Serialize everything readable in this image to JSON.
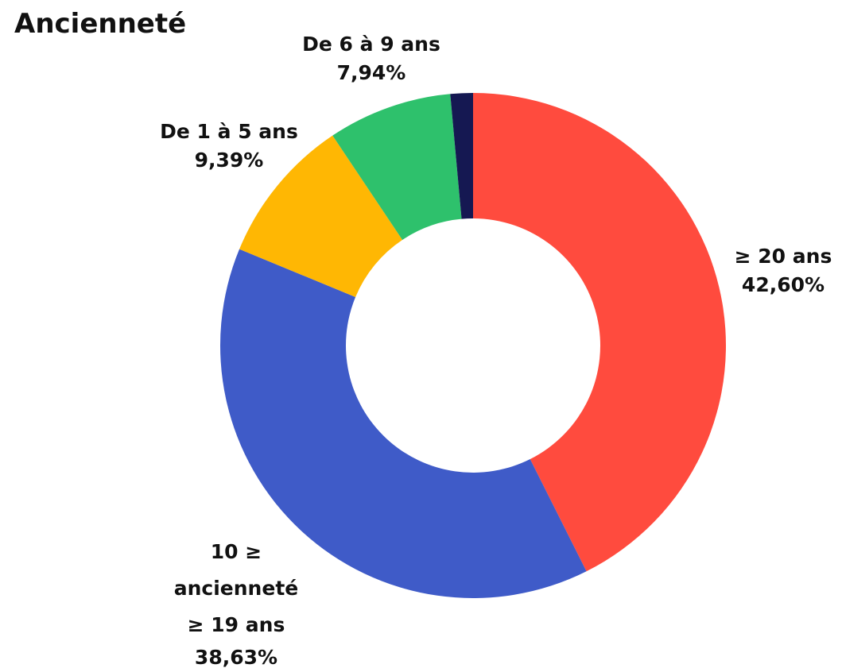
{
  "chart_data": {
    "type": "donut",
    "title": "Ancienneté",
    "categories": [
      "≥ 20 ans",
      "10 ≥ ancienneté ≥ 19 ans",
      "De 1 à 5 ans",
      "De 6 à 9 ans",
      null
    ],
    "values": [
      42.6,
      38.63,
      9.39,
      7.94,
      1.44
    ],
    "value_labels": [
      "42,60%",
      "38,63%",
      "9,39%",
      "7,94%",
      null
    ],
    "colors": [
      "#ff4b3e",
      "#3f5bc8",
      "#ffb703",
      "#2ec16c",
      "#151852"
    ]
  }
}
